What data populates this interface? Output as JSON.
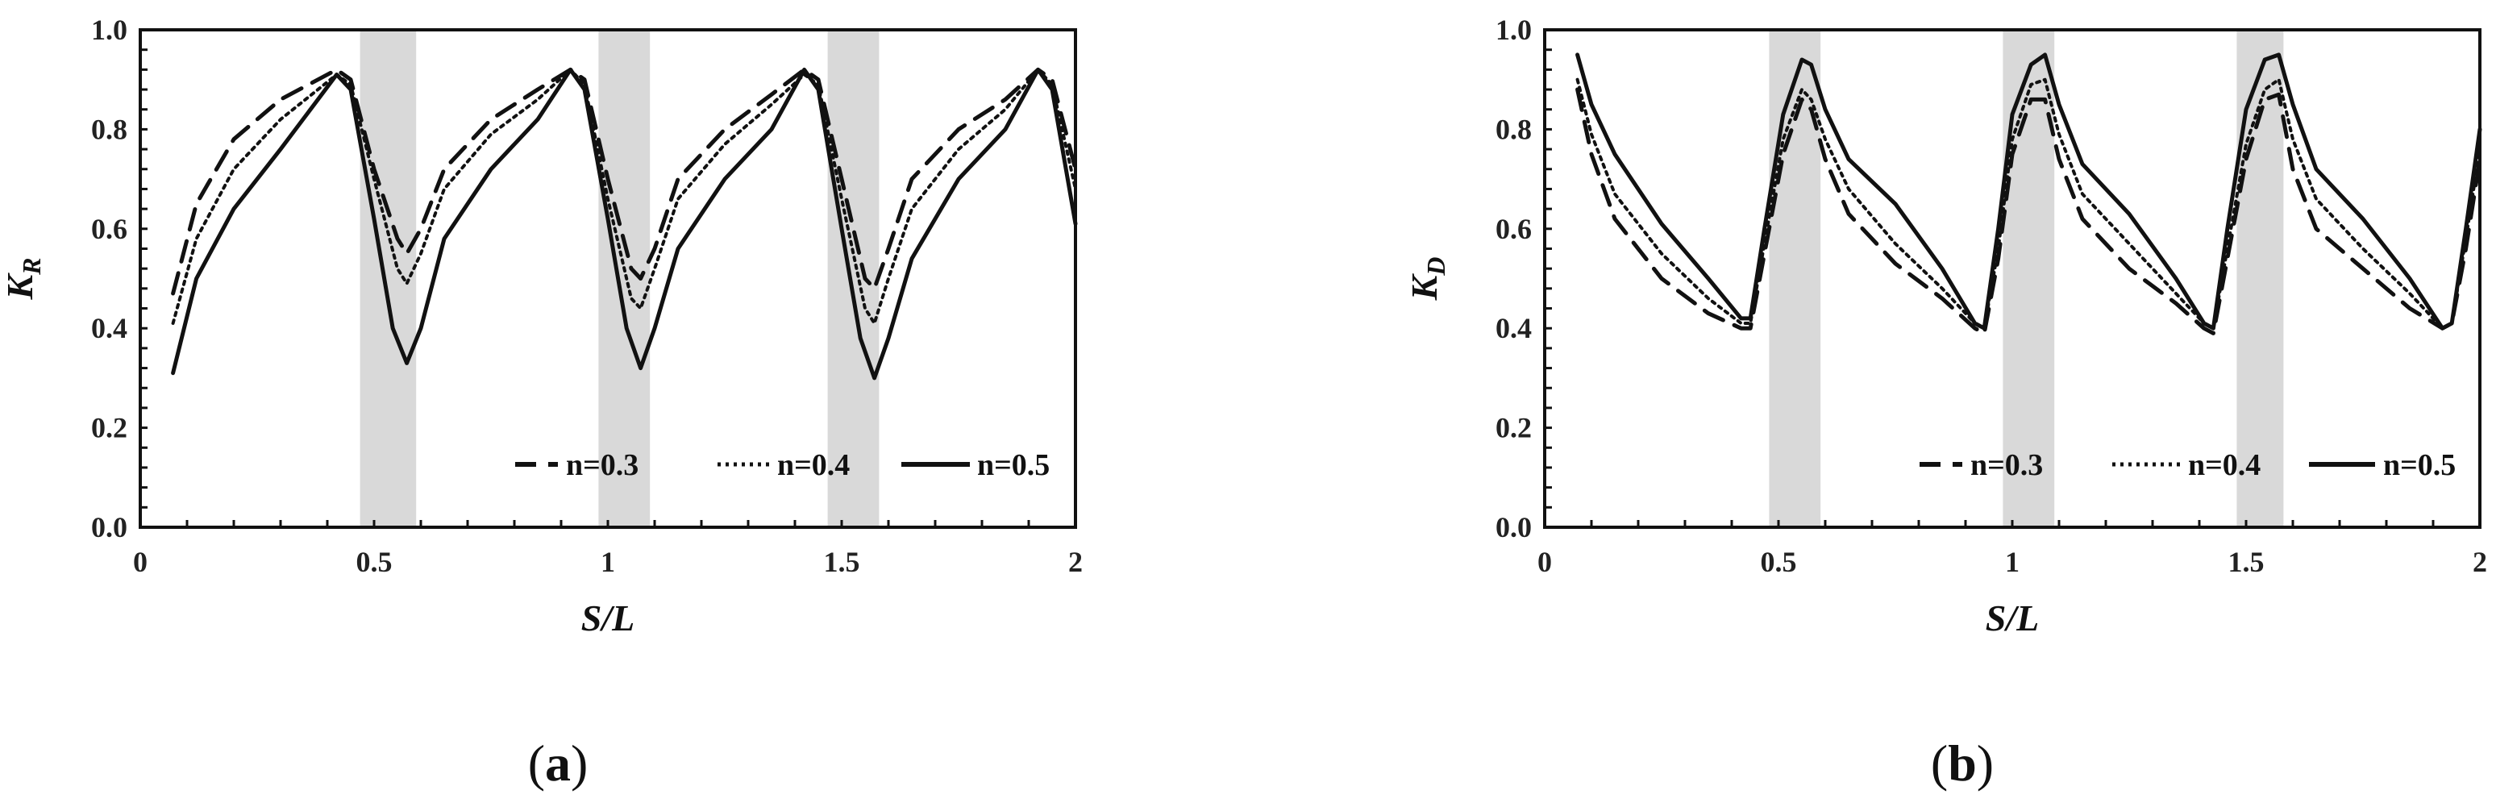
{
  "chart_data": [
    {
      "type": "line",
      "panel_label": "a",
      "ylabel": "K",
      "ylabel_sub": "R",
      "xlabel": "S/L",
      "xlim": [
        0,
        2
      ],
      "ylim": [
        0,
        1
      ],
      "xticks": [
        0,
        0.5,
        1,
        1.5,
        2
      ],
      "xtick_labels": [
        "0",
        "0.5",
        "1",
        "1.5",
        "2"
      ],
      "yticks": [
        0,
        0.2,
        0.4,
        0.6,
        0.8,
        1.0
      ],
      "ytick_labels": [
        "0.0",
        "0.2",
        "0.4",
        "0.6",
        "0.8",
        "1.0"
      ],
      "shaded_bands": [
        [
          0.47,
          0.59
        ],
        [
          0.98,
          1.09
        ],
        [
          1.47,
          1.58
        ]
      ],
      "legend": "bottom-right",
      "series": [
        {
          "name": "n=0.3",
          "style": "dashed",
          "points": [
            [
              0.07,
              0.47
            ],
            [
              0.12,
              0.65
            ],
            [
              0.2,
              0.78
            ],
            [
              0.3,
              0.86
            ],
            [
              0.42,
              0.92
            ],
            [
              0.45,
              0.9
            ],
            [
              0.5,
              0.72
            ],
            [
              0.55,
              0.58
            ],
            [
              0.57,
              0.55
            ],
            [
              0.6,
              0.6
            ],
            [
              0.65,
              0.72
            ],
            [
              0.75,
              0.82
            ],
            [
              0.85,
              0.88
            ],
            [
              0.92,
              0.92
            ],
            [
              0.95,
              0.9
            ],
            [
              1.0,
              0.7
            ],
            [
              1.05,
              0.52
            ],
            [
              1.07,
              0.5
            ],
            [
              1.1,
              0.56
            ],
            [
              1.15,
              0.7
            ],
            [
              1.25,
              0.8
            ],
            [
              1.35,
              0.87
            ],
            [
              1.42,
              0.92
            ],
            [
              1.45,
              0.9
            ],
            [
              1.5,
              0.7
            ],
            [
              1.55,
              0.5
            ],
            [
              1.57,
              0.48
            ],
            [
              1.6,
              0.56
            ],
            [
              1.65,
              0.7
            ],
            [
              1.75,
              0.8
            ],
            [
              1.85,
              0.86
            ],
            [
              1.92,
              0.92
            ],
            [
              1.95,
              0.9
            ],
            [
              2.0,
              0.72
            ]
          ]
        },
        {
          "name": "n=0.4",
          "style": "dotted",
          "points": [
            [
              0.07,
              0.41
            ],
            [
              0.12,
              0.58
            ],
            [
              0.2,
              0.72
            ],
            [
              0.3,
              0.82
            ],
            [
              0.42,
              0.91
            ],
            [
              0.45,
              0.89
            ],
            [
              0.5,
              0.7
            ],
            [
              0.55,
              0.52
            ],
            [
              0.57,
              0.49
            ],
            [
              0.6,
              0.55
            ],
            [
              0.65,
              0.68
            ],
            [
              0.75,
              0.79
            ],
            [
              0.85,
              0.86
            ],
            [
              0.92,
              0.92
            ],
            [
              0.95,
              0.89
            ],
            [
              1.0,
              0.66
            ],
            [
              1.05,
              0.46
            ],
            [
              1.07,
              0.44
            ],
            [
              1.1,
              0.52
            ],
            [
              1.15,
              0.66
            ],
            [
              1.25,
              0.77
            ],
            [
              1.35,
              0.85
            ],
            [
              1.42,
              0.91
            ],
            [
              1.45,
              0.89
            ],
            [
              1.5,
              0.66
            ],
            [
              1.55,
              0.44
            ],
            [
              1.57,
              0.41
            ],
            [
              1.6,
              0.5
            ],
            [
              1.65,
              0.64
            ],
            [
              1.75,
              0.76
            ],
            [
              1.85,
              0.84
            ],
            [
              1.92,
              0.92
            ],
            [
              1.95,
              0.89
            ],
            [
              2.0,
              0.68
            ]
          ]
        },
        {
          "name": "n=0.5",
          "style": "solid",
          "points": [
            [
              0.07,
              0.31
            ],
            [
              0.12,
              0.5
            ],
            [
              0.2,
              0.64
            ],
            [
              0.3,
              0.76
            ],
            [
              0.42,
              0.91
            ],
            [
              0.45,
              0.88
            ],
            [
              0.5,
              0.62
            ],
            [
              0.54,
              0.4
            ],
            [
              0.57,
              0.33
            ],
            [
              0.6,
              0.4
            ],
            [
              0.65,
              0.58
            ],
            [
              0.75,
              0.72
            ],
            [
              0.85,
              0.82
            ],
            [
              0.92,
              0.92
            ],
            [
              0.95,
              0.88
            ],
            [
              1.0,
              0.62
            ],
            [
              1.04,
              0.4
            ],
            [
              1.07,
              0.32
            ],
            [
              1.1,
              0.4
            ],
            [
              1.15,
              0.56
            ],
            [
              1.25,
              0.7
            ],
            [
              1.35,
              0.8
            ],
            [
              1.42,
              0.92
            ],
            [
              1.45,
              0.88
            ],
            [
              1.5,
              0.6
            ],
            [
              1.54,
              0.38
            ],
            [
              1.57,
              0.3
            ],
            [
              1.6,
              0.38
            ],
            [
              1.65,
              0.54
            ],
            [
              1.75,
              0.7
            ],
            [
              1.85,
              0.8
            ],
            [
              1.92,
              0.92
            ],
            [
              1.95,
              0.88
            ],
            [
              2.0,
              0.61
            ]
          ]
        }
      ]
    },
    {
      "type": "line",
      "panel_label": "b",
      "ylabel": "K",
      "ylabel_sub": "D",
      "xlabel": "S/L",
      "xlim": [
        0,
        2
      ],
      "ylim": [
        0,
        1
      ],
      "xticks": [
        0,
        0.5,
        1,
        1.5,
        2
      ],
      "xtick_labels": [
        "0",
        "0.5",
        "1",
        "1.5",
        "2"
      ],
      "yticks": [
        0,
        0.2,
        0.4,
        0.6,
        0.8,
        1.0
      ],
      "ytick_labels": [
        "0.0",
        "0.2",
        "0.4",
        "0.6",
        "0.8",
        "1.0"
      ],
      "shaded_bands": [
        [
          0.48,
          0.59
        ],
        [
          0.98,
          1.09
        ],
        [
          1.48,
          1.58
        ]
      ],
      "legend": "bottom-right",
      "series": [
        {
          "name": "n=0.3",
          "style": "dashed",
          "points": [
            [
              0.07,
              0.88
            ],
            [
              0.1,
              0.75
            ],
            [
              0.15,
              0.62
            ],
            [
              0.25,
              0.5
            ],
            [
              0.35,
              0.43
            ],
            [
              0.42,
              0.4
            ],
            [
              0.44,
              0.4
            ],
            [
              0.47,
              0.55
            ],
            [
              0.51,
              0.75
            ],
            [
              0.55,
              0.86
            ],
            [
              0.57,
              0.84
            ],
            [
              0.6,
              0.74
            ],
            [
              0.65,
              0.63
            ],
            [
              0.75,
              0.53
            ],
            [
              0.85,
              0.46
            ],
            [
              0.92,
              0.4
            ],
            [
              0.94,
              0.39
            ],
            [
              0.97,
              0.54
            ],
            [
              1.0,
              0.75
            ],
            [
              1.04,
              0.86
            ],
            [
              1.07,
              0.86
            ],
            [
              1.1,
              0.74
            ],
            [
              1.15,
              0.62
            ],
            [
              1.25,
              0.52
            ],
            [
              1.35,
              0.45
            ],
            [
              1.41,
              0.4
            ],
            [
              1.43,
              0.39
            ],
            [
              1.46,
              0.54
            ],
            [
              1.5,
              0.74
            ],
            [
              1.54,
              0.86
            ],
            [
              1.57,
              0.87
            ],
            [
              1.6,
              0.72
            ],
            [
              1.65,
              0.6
            ],
            [
              1.75,
              0.52
            ],
            [
              1.85,
              0.44
            ],
            [
              1.92,
              0.4
            ],
            [
              1.94,
              0.41
            ],
            [
              1.97,
              0.56
            ],
            [
              2.0,
              0.74
            ]
          ]
        },
        {
          "name": "n=0.4",
          "style": "dotted",
          "points": [
            [
              0.07,
              0.9
            ],
            [
              0.1,
              0.79
            ],
            [
              0.15,
              0.67
            ],
            [
              0.25,
              0.55
            ],
            [
              0.35,
              0.46
            ],
            [
              0.42,
              0.41
            ],
            [
              0.44,
              0.41
            ],
            [
              0.47,
              0.57
            ],
            [
              0.51,
              0.78
            ],
            [
              0.55,
              0.88
            ],
            [
              0.57,
              0.86
            ],
            [
              0.6,
              0.78
            ],
            [
              0.65,
              0.68
            ],
            [
              0.75,
              0.57
            ],
            [
              0.85,
              0.48
            ],
            [
              0.92,
              0.41
            ],
            [
              0.94,
              0.4
            ],
            [
              0.97,
              0.56
            ],
            [
              1.0,
              0.78
            ],
            [
              1.04,
              0.89
            ],
            [
              1.07,
              0.9
            ],
            [
              1.1,
              0.79
            ],
            [
              1.15,
              0.67
            ],
            [
              1.25,
              0.57
            ],
            [
              1.35,
              0.47
            ],
            [
              1.41,
              0.41
            ],
            [
              1.43,
              0.4
            ],
            [
              1.46,
              0.56
            ],
            [
              1.5,
              0.77
            ],
            [
              1.54,
              0.88
            ],
            [
              1.57,
              0.9
            ],
            [
              1.6,
              0.78
            ],
            [
              1.65,
              0.66
            ],
            [
              1.75,
              0.56
            ],
            [
              1.85,
              0.47
            ],
            [
              1.92,
              0.4
            ],
            [
              1.94,
              0.41
            ],
            [
              1.97,
              0.58
            ],
            [
              2.0,
              0.76
            ]
          ]
        },
        {
          "name": "n=0.5",
          "style": "solid",
          "points": [
            [
              0.07,
              0.95
            ],
            [
              0.1,
              0.85
            ],
            [
              0.15,
              0.75
            ],
            [
              0.25,
              0.61
            ],
            [
              0.35,
              0.5
            ],
            [
              0.42,
              0.42
            ],
            [
              0.44,
              0.42
            ],
            [
              0.47,
              0.6
            ],
            [
              0.51,
              0.83
            ],
            [
              0.55,
              0.94
            ],
            [
              0.57,
              0.93
            ],
            [
              0.6,
              0.84
            ],
            [
              0.65,
              0.74
            ],
            [
              0.75,
              0.65
            ],
            [
              0.85,
              0.52
            ],
            [
              0.92,
              0.41
            ],
            [
              0.94,
              0.4
            ],
            [
              0.97,
              0.6
            ],
            [
              1.0,
              0.83
            ],
            [
              1.04,
              0.93
            ],
            [
              1.07,
              0.95
            ],
            [
              1.1,
              0.85
            ],
            [
              1.15,
              0.73
            ],
            [
              1.25,
              0.63
            ],
            [
              1.35,
              0.5
            ],
            [
              1.41,
              0.41
            ],
            [
              1.43,
              0.4
            ],
            [
              1.46,
              0.6
            ],
            [
              1.5,
              0.84
            ],
            [
              1.54,
              0.94
            ],
            [
              1.57,
              0.95
            ],
            [
              1.6,
              0.85
            ],
            [
              1.65,
              0.72
            ],
            [
              1.75,
              0.62
            ],
            [
              1.85,
              0.5
            ],
            [
              1.92,
              0.4
            ],
            [
              1.94,
              0.41
            ],
            [
              1.97,
              0.6
            ],
            [
              2.0,
              0.8
            ]
          ]
        }
      ]
    }
  ]
}
